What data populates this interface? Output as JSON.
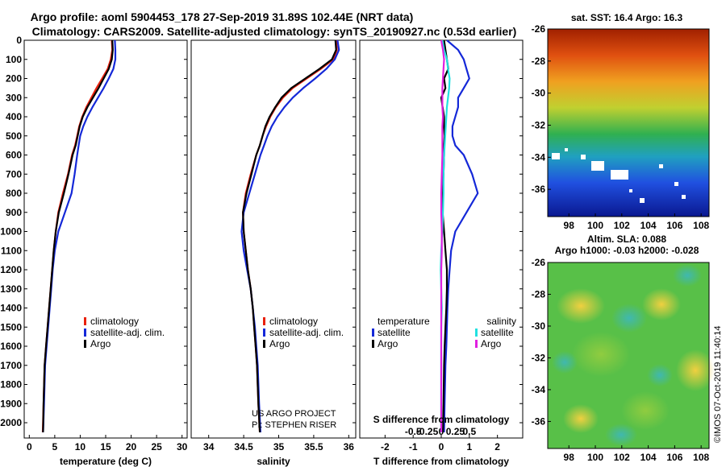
{
  "header": {
    "title_line1": "Argo profile: aoml 5904453_178 27-Sep-2019 31.89S 102.44E (NRT data)",
    "title_line2": "Climatology: CARS2009. Satellite-adjusted climatology: synTS_20190927.nc (0.53d earlier)"
  },
  "colors": {
    "climatology": "#e8200c",
    "satellite": "#1428d8",
    "argo": "#000000",
    "sat_salinity": "#22e0e0",
    "argo_salinity": "#e020e0"
  },
  "chart_data": [
    {
      "id": "temperature",
      "type": "line",
      "xlabel": "temperature (deg C)",
      "ylabel": "",
      "xlim": [
        -1,
        31
      ],
      "ylim": [
        2080,
        0
      ],
      "xticks": [
        0,
        5,
        10,
        15,
        20,
        25,
        30
      ],
      "yticks": [
        0,
        100,
        200,
        300,
        400,
        500,
        600,
        700,
        800,
        900,
        1000,
        1100,
        1200,
        1300,
        1400,
        1500,
        1600,
        1700,
        1800,
        1900,
        2000
      ],
      "legend": [
        "climatology",
        "satellite-adj. clim.",
        "Argo"
      ],
      "legend_position": "lower-right",
      "series": [
        {
          "name": "climatology",
          "color": "#e8200c",
          "x": [
            16.2,
            16.3,
            16.0,
            15.4,
            14.3,
            13.2,
            12.2,
            11.2,
            10.4,
            9.8,
            9.4,
            9.0,
            8.4,
            7.6,
            6.6,
            5.7,
            5.2,
            4.8,
            4.5,
            4.2,
            3.9,
            3.6,
            3.3,
            3.0,
            2.8,
            2.65
          ],
          "y": [
            0,
            50,
            100,
            150,
            200,
            250,
            300,
            350,
            400,
            450,
            500,
            550,
            600,
            700,
            800,
            900,
            1000,
            1100,
            1200,
            1300,
            1400,
            1500,
            1600,
            1700,
            1900,
            2050
          ]
        },
        {
          "name": "satellite-adj. clim.",
          "color": "#1428d8",
          "x": [
            16.8,
            16.9,
            16.9,
            16.5,
            15.6,
            14.6,
            13.5,
            12.4,
            11.4,
            10.6,
            10.0,
            9.7,
            9.4,
            8.9,
            8.3,
            7.0,
            5.7,
            5.0,
            4.6,
            4.3,
            4.0,
            3.7,
            3.4,
            3.1,
            2.9,
            2.7
          ],
          "y": [
            0,
            50,
            100,
            150,
            200,
            250,
            300,
            350,
            400,
            450,
            500,
            550,
            600,
            700,
            800,
            900,
            1000,
            1100,
            1200,
            1300,
            1400,
            1500,
            1600,
            1700,
            1900,
            2050
          ]
        },
        {
          "name": "Argo",
          "color": "#000000",
          "x": [
            16.3,
            16.4,
            16.2,
            15.6,
            14.6,
            13.6,
            12.5,
            11.4,
            10.5,
            9.9,
            9.5,
            9.1,
            8.5,
            7.7,
            6.8,
            5.8,
            5.2,
            4.8,
            4.5,
            4.2,
            3.9,
            3.6,
            3.3,
            3.0,
            2.8,
            2.7
          ],
          "y": [
            0,
            50,
            100,
            150,
            200,
            250,
            300,
            350,
            400,
            450,
            500,
            550,
            600,
            700,
            800,
            900,
            1000,
            1100,
            1200,
            1300,
            1400,
            1500,
            1600,
            1700,
            1900,
            2050
          ]
        }
      ]
    },
    {
      "id": "salinity",
      "type": "line",
      "xlabel": "salinity",
      "xlim": [
        33.75,
        36.1
      ],
      "ylim": [
        2080,
        0
      ],
      "xticks": [
        34,
        34.5,
        35,
        35.5,
        36
      ],
      "xtick_labels": [
        "34",
        "34.5",
        "35",
        "35.5",
        "36"
      ],
      "legend": [
        "climatology",
        "satellite-adj. clim.",
        "Argo"
      ],
      "legend_position": "lower-right",
      "annotations": [
        "US ARGO PROJECT",
        "PI: STEPHEN RISER"
      ],
      "series": [
        {
          "name": "climatology",
          "color": "#e8200c",
          "x": [
            35.82,
            35.83,
            35.78,
            35.6,
            35.4,
            35.2,
            35.06,
            34.96,
            34.88,
            34.82,
            34.77,
            34.73,
            34.68,
            34.6,
            34.53,
            34.49,
            34.5,
            34.53,
            34.56,
            34.6,
            34.63,
            34.65,
            34.67,
            34.69,
            34.71,
            34.73
          ],
          "y": [
            0,
            50,
            100,
            150,
            200,
            250,
            300,
            350,
            400,
            450,
            500,
            550,
            600,
            700,
            800,
            900,
            1000,
            1100,
            1200,
            1300,
            1400,
            1500,
            1600,
            1700,
            1900,
            2050
          ]
        },
        {
          "name": "satellite-adj. clim.",
          "color": "#1428d8",
          "x": [
            35.84,
            35.86,
            35.8,
            35.68,
            35.52,
            35.35,
            35.2,
            35.08,
            34.98,
            34.9,
            34.84,
            34.79,
            34.74,
            34.66,
            34.58,
            34.5,
            34.47,
            34.5,
            34.55,
            34.6,
            34.63,
            34.66,
            34.68,
            34.7,
            34.72,
            34.74
          ],
          "y": [
            0,
            50,
            100,
            150,
            200,
            250,
            300,
            350,
            400,
            450,
            500,
            550,
            600,
            700,
            800,
            900,
            1000,
            1100,
            1200,
            1300,
            1400,
            1500,
            1600,
            1700,
            1900,
            2050
          ]
        },
        {
          "name": "Argo",
          "color": "#000000",
          "x": [
            35.81,
            35.82,
            35.76,
            35.58,
            35.38,
            35.18,
            35.04,
            34.95,
            34.87,
            34.81,
            34.77,
            34.73,
            34.68,
            34.61,
            34.54,
            34.49,
            34.5,
            34.53,
            34.56,
            34.6,
            34.63,
            34.65,
            34.67,
            34.69,
            34.71,
            34.73
          ],
          "y": [
            0,
            50,
            100,
            150,
            200,
            250,
            300,
            350,
            400,
            450,
            500,
            550,
            600,
            700,
            800,
            900,
            1000,
            1100,
            1200,
            1300,
            1400,
            1500,
            1600,
            1700,
            1900,
            2050
          ]
        }
      ]
    },
    {
      "id": "difference",
      "type": "line",
      "xlabel": "T difference from climatology",
      "xlabel_top": "S difference from climatology",
      "xlim": [
        -2.9,
        2.9
      ],
      "ylim": [
        2080,
        0
      ],
      "xticks": [
        -2,
        -1,
        0,
        1,
        2
      ],
      "top_ticks": [
        -0.5,
        -0.25,
        0,
        0.25,
        0.5
      ],
      "top_tick_labels": [
        "-0.5",
        "-0.25",
        "0",
        "0.25",
        "0.5"
      ],
      "legend_temperature": [
        "temperature",
        "satellite",
        "Argo"
      ],
      "legend_salinity": [
        "salinity",
        "satellite",
        "Argo"
      ],
      "series": [
        {
          "name": "temperature satellite",
          "color": "#1428d8",
          "x": [
            0.2,
            0.6,
            0.8,
            0.9,
            1.0,
            0.8,
            0.6,
            0.6,
            0.5,
            0.4,
            0.4,
            0.5,
            0.8,
            1.1,
            1.3,
            0.9,
            0.5,
            0.35,
            0.3,
            0.25,
            0.22,
            0.2,
            0.18,
            0.15,
            0.12,
            0.1
          ],
          "y": [
            0,
            50,
            100,
            150,
            200,
            250,
            300,
            350,
            400,
            450,
            500,
            550,
            600,
            700,
            800,
            900,
            1000,
            1100,
            1200,
            1300,
            1400,
            1500,
            1600,
            1700,
            1900,
            2050
          ]
        },
        {
          "name": "temperature Argo",
          "color": "#000000",
          "x": [
            0.1,
            0.15,
            0.2,
            0.25,
            0.1,
            0.15,
            0.0,
            0.05,
            0.1,
            0.1,
            0.12,
            0.1,
            0.1,
            0.08,
            0.05,
            0.05,
            0.1,
            0.15,
            0.2,
            0.2,
            0.18,
            0.15,
            0.12,
            0.1,
            0.08,
            0.06
          ],
          "y": [
            0,
            50,
            100,
            150,
            200,
            250,
            300,
            350,
            400,
            450,
            500,
            550,
            600,
            700,
            800,
            900,
            1000,
            1100,
            1200,
            1300,
            1400,
            1500,
            1600,
            1700,
            1900,
            2050
          ]
        },
        {
          "name": "salinity satellite",
          "color": "#22e0e0",
          "x": [
            0.02,
            0.05,
            0.1,
            0.12,
            0.15,
            0.14,
            0.12,
            0.1,
            0.09,
            0.08,
            0.07,
            0.06,
            0.05,
            0.04,
            0.04,
            0.03,
            0.02,
            0.0,
            -0.01,
            0.0,
            0.01,
            0.0,
            0.0,
            0.0,
            0.0,
            0.0
          ],
          "y": [
            0,
            50,
            100,
            150,
            200,
            250,
            300,
            350,
            400,
            450,
            500,
            550,
            600,
            700,
            800,
            900,
            1000,
            1100,
            1200,
            1300,
            1400,
            1500,
            1600,
            1700,
            1900,
            2050
          ]
        },
        {
          "name": "salinity Argo",
          "color": "#e020e0",
          "x": [
            0.0,
            0.03,
            0.05,
            0.04,
            0.03,
            0.02,
            0.02,
            0.02,
            0.03,
            0.02,
            0.02,
            0.02,
            0.02,
            0.01,
            0.0,
            0.0,
            0.01,
            0.01,
            0.0,
            0.0,
            0.0,
            0.0,
            0.0,
            0.0,
            0.0,
            0.0
          ],
          "y": [
            0,
            50,
            100,
            150,
            200,
            250,
            300,
            350,
            400,
            450,
            500,
            550,
            600,
            700,
            800,
            900,
            1000,
            1100,
            1200,
            1300,
            1400,
            1500,
            1600,
            1700,
            1900,
            2050
          ]
        }
      ]
    },
    {
      "id": "sst_map",
      "type": "heatmap",
      "title": "sat. SST: 16.4 Argo: 16.3",
      "xticks": [
        98,
        100,
        102,
        104,
        106,
        108
      ],
      "yticks": [
        -26,
        -28,
        -30,
        -32,
        -34,
        -36
      ],
      "xlim": [
        96.4,
        108.6
      ],
      "ylim": [
        -37.7,
        -26
      ]
    },
    {
      "id": "sla_map",
      "type": "heatmap",
      "title_line1": "Altim. SLA: 0.088",
      "title_line2": "Argo h1000: -0.03 h2000: -0.028",
      "xticks": [
        98,
        100,
        102,
        104,
        106,
        108
      ],
      "yticks": [
        -26,
        -28,
        -30,
        -32,
        -34,
        -36
      ],
      "xlim": [
        96.4,
        108.6
      ],
      "ylim": [
        -37.7,
        -26
      ]
    }
  ],
  "watermark": "©IMOS 07-Oct-2019 11:40:14"
}
